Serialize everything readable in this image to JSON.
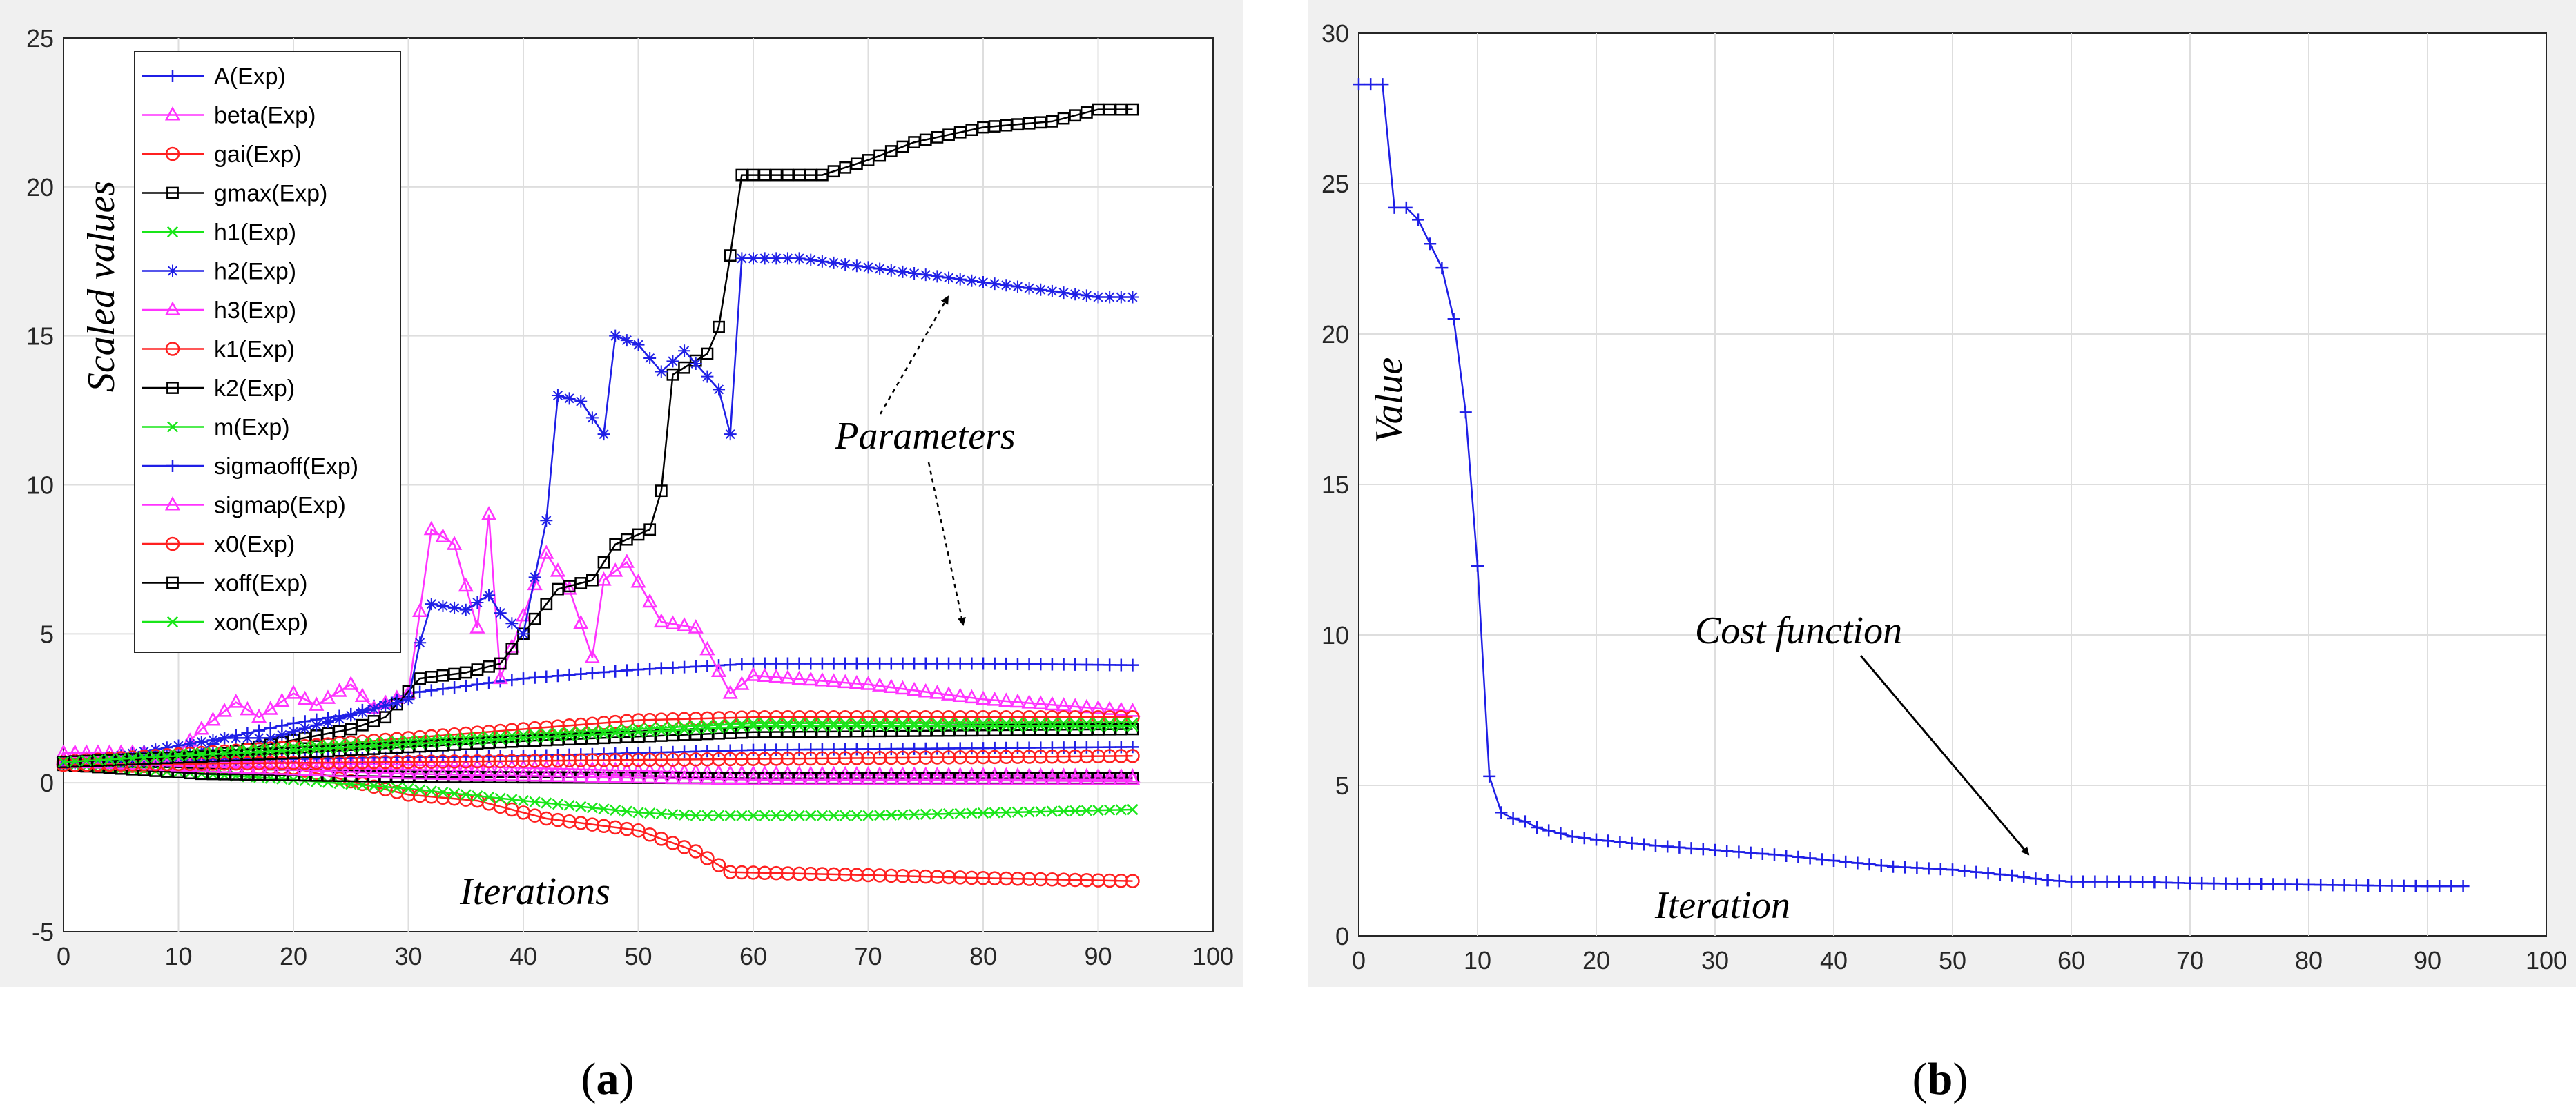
{
  "colors": {
    "A": "#1f1fe6",
    "beta": "#ff33ff",
    "gai": "#ff2020",
    "gmax": "#000000",
    "h1": "#19e619",
    "grid": "#dedede",
    "axes_bg": "#ffffff",
    "frame_bg": "#f0f0f0"
  },
  "chart_data": [
    {
      "type": "line",
      "panel": "a",
      "caption_prefix": "(",
      "caption_letter": "a",
      "caption_suffix": ")",
      "ylabel": "Scaled values",
      "xlabel": "Iterations",
      "xlim": [
        0,
        100
      ],
      "ylim": [
        -5,
        25
      ],
      "xticks": [
        "0",
        "10",
        "20",
        "30",
        "40",
        "50",
        "60",
        "70",
        "80",
        "90",
        "100"
      ],
      "yticks": [
        "-5",
        "0",
        "5",
        "10",
        "15",
        "20",
        "25"
      ],
      "grid": true,
      "legend_position": "top-left",
      "annotation": "Parameters",
      "series": [
        {
          "name": "A(Exp)",
          "color_key": "A",
          "marker": "plus",
          "points": [
            [
              0,
              0.7
            ],
            [
              10,
              0.7
            ],
            [
              14,
              1.5
            ],
            [
              20,
              2.0
            ],
            [
              25,
              2.3
            ],
            [
              30,
              3.0
            ],
            [
              40,
              3.5
            ],
            [
              50,
              3.8
            ],
            [
              60,
              4.0
            ],
            [
              70,
              4.0
            ],
            [
              80,
              4.0
            ],
            [
              93,
              3.95
            ]
          ]
        },
        {
          "name": "beta(Exp)",
          "color_key": "beta",
          "marker": "triangle",
          "points": [
            [
              0,
              1.0
            ],
            [
              10,
              1.0
            ],
            [
              12,
              1.8
            ],
            [
              15,
              2.7
            ],
            [
              17,
              2.2
            ],
            [
              20,
              3.0
            ],
            [
              22,
              2.6
            ],
            [
              25,
              3.3
            ],
            [
              27,
              2.5
            ],
            [
              30,
              3.0
            ],
            [
              32,
              8.5
            ],
            [
              34,
              8.0
            ],
            [
              36,
              5.2
            ],
            [
              37,
              9.0
            ],
            [
              38,
              3.5
            ],
            [
              42,
              7.7
            ],
            [
              44,
              6.5
            ],
            [
              46,
              4.2
            ],
            [
              47,
              6.8
            ],
            [
              49,
              7.4
            ],
            [
              52,
              5.4
            ],
            [
              55,
              5.2
            ],
            [
              58,
              3.0
            ],
            [
              60,
              3.6
            ],
            [
              70,
              3.3
            ],
            [
              80,
              2.8
            ],
            [
              93,
              2.4
            ]
          ]
        },
        {
          "name": "gai(Exp)",
          "color_key": "gai",
          "marker": "circle",
          "points": [
            [
              0,
              0.6
            ],
            [
              20,
              0.5
            ],
            [
              30,
              -0.4
            ],
            [
              36,
              -0.6
            ],
            [
              42,
              -1.2
            ],
            [
              50,
              -1.6
            ],
            [
              55,
              -2.3
            ],
            [
              58,
              -3.0
            ],
            [
              70,
              -3.1
            ],
            [
              80,
              -3.2
            ],
            [
              93,
              -3.3
            ]
          ]
        },
        {
          "name": "gmax(Exp)",
          "color_key": "gmax",
          "marker": "square",
          "points": [
            [
              0,
              0.7
            ],
            [
              10,
              0.7
            ],
            [
              25,
              1.8
            ],
            [
              28,
              2.2
            ],
            [
              31,
              3.5
            ],
            [
              35,
              3.7
            ],
            [
              38,
              4.0
            ],
            [
              40,
              5.0
            ],
            [
              43,
              6.5
            ],
            [
              46,
              6.8
            ],
            [
              48,
              8.0
            ],
            [
              51,
              8.5
            ],
            [
              52,
              9.8
            ],
            [
              53,
              13.7
            ],
            [
              56,
              14.4
            ],
            [
              57,
              15.3
            ],
            [
              58,
              17.7
            ],
            [
              59,
              20.4
            ],
            [
              66,
              20.4
            ],
            [
              70,
              20.9
            ],
            [
              74,
              21.5
            ],
            [
              80,
              22.0
            ],
            [
              86,
              22.2
            ],
            [
              90,
              22.6
            ],
            [
              93,
              22.6
            ]
          ]
        },
        {
          "name": "h1(Exp)",
          "color_key": "h1",
          "marker": "x",
          "points": [
            [
              0,
              0.6
            ],
            [
              20,
              0.1
            ],
            [
              30,
              -0.2
            ],
            [
              40,
              -0.6
            ],
            [
              50,
              -1.0
            ],
            [
              55,
              -1.1
            ],
            [
              70,
              -1.1
            ],
            [
              93,
              -0.9
            ]
          ]
        },
        {
          "name": "h2(Exp)",
          "color_key": "A",
          "marker": "star",
          "points": [
            [
              0,
              0.6
            ],
            [
              14,
              1.5
            ],
            [
              18,
              1.5
            ],
            [
              30,
              2.8
            ],
            [
              31,
              4.7
            ],
            [
              32,
              6.0
            ],
            [
              35,
              5.8
            ],
            [
              37,
              6.3
            ],
            [
              38,
              5.7
            ],
            [
              40,
              5.0
            ],
            [
              42,
              8.8
            ],
            [
              43,
              13.0
            ],
            [
              45,
              12.8
            ],
            [
              47,
              11.7
            ],
            [
              48,
              15.0
            ],
            [
              50,
              14.7
            ],
            [
              52,
              13.8
            ],
            [
              54,
              14.5
            ],
            [
              57,
              13.2
            ],
            [
              58,
              11.7
            ],
            [
              59,
              17.6
            ],
            [
              64,
              17.6
            ],
            [
              70,
              17.3
            ],
            [
              80,
              16.8
            ],
            [
              90,
              16.3
            ],
            [
              93,
              16.3
            ]
          ]
        },
        {
          "name": "h3(Exp)",
          "color_key": "beta",
          "marker": "triangle",
          "points": [
            [
              0,
              0.8
            ],
            [
              30,
              0.6
            ],
            [
              60,
              0.3
            ],
            [
              93,
              0.2
            ]
          ]
        },
        {
          "name": "k1(Exp)",
          "color_key": "gai",
          "marker": "circle",
          "points": [
            [
              0,
              0.7
            ],
            [
              20,
              1.2
            ],
            [
              40,
              1.8
            ],
            [
              50,
              2.1
            ],
            [
              60,
              2.2
            ],
            [
              93,
              2.2
            ]
          ]
        },
        {
          "name": "k2(Exp)",
          "color_key": "gmax",
          "marker": "square",
          "points": [
            [
              0,
              0.6
            ],
            [
              12,
              0.3
            ],
            [
              30,
              0.2
            ],
            [
              60,
              0.15
            ],
            [
              93,
              0.15
            ]
          ]
        },
        {
          "name": "m(Exp)",
          "color_key": "h1",
          "marker": "x",
          "points": [
            [
              0,
              0.7
            ],
            [
              20,
              1.2
            ],
            [
              40,
              1.6
            ],
            [
              50,
              1.8
            ],
            [
              60,
              2.0
            ],
            [
              93,
              2.0
            ]
          ]
        },
        {
          "name": "sigmaoff(Exp)",
          "color_key": "A",
          "marker": "plus",
          "points": [
            [
              0,
              0.7
            ],
            [
              20,
              0.8
            ],
            [
              40,
              0.9
            ],
            [
              60,
              1.1
            ],
            [
              93,
              1.2
            ]
          ]
        },
        {
          "name": "sigmap(Exp)",
          "color_key": "beta",
          "marker": "triangle",
          "points": [
            [
              0,
              0.7
            ],
            [
              30,
              0.3
            ],
            [
              60,
              0.1
            ],
            [
              93,
              0.1
            ]
          ]
        },
        {
          "name": "x0(Exp)",
          "color_key": "gai",
          "marker": "circle",
          "points": [
            [
              0,
              0.6
            ],
            [
              30,
              0.7
            ],
            [
              60,
              0.8
            ],
            [
              93,
              0.9
            ]
          ]
        },
        {
          "name": "xoff(Exp)",
          "color_key": "gmax",
          "marker": "square",
          "points": [
            [
              0,
              0.7
            ],
            [
              20,
              1.0
            ],
            [
              40,
              1.4
            ],
            [
              60,
              1.7
            ],
            [
              93,
              1.8
            ]
          ]
        },
        {
          "name": "xon(Exp)",
          "color_key": "h1",
          "marker": "x",
          "points": [
            [
              0,
              0.7
            ],
            [
              20,
              1.1
            ],
            [
              40,
              1.5
            ],
            [
              60,
              1.9
            ],
            [
              93,
              1.9
            ]
          ]
        }
      ]
    },
    {
      "type": "line",
      "panel": "b",
      "caption_prefix": "(",
      "caption_letter": "b",
      "caption_suffix": ")",
      "ylabel": "Value",
      "xlabel": "Iteration",
      "xlim": [
        0,
        100
      ],
      "ylim": [
        0,
        30
      ],
      "xticks": [
        "0",
        "10",
        "20",
        "30",
        "40",
        "50",
        "60",
        "70",
        "80",
        "90",
        "100"
      ],
      "yticks": [
        "0",
        "5",
        "10",
        "15",
        "20",
        "25",
        "30"
      ],
      "grid": true,
      "annotation": "Cost  function",
      "series": [
        {
          "name": "Cost function",
          "color_key": "A",
          "marker": "plus",
          "points": [
            [
              0,
              28.3
            ],
            [
              1,
              28.3
            ],
            [
              2,
              28.3
            ],
            [
              3,
              24.2
            ],
            [
              4,
              24.2
            ],
            [
              5,
              23.8
            ],
            [
              6,
              23.0
            ],
            [
              7,
              22.2
            ],
            [
              8,
              20.5
            ],
            [
              9,
              17.4
            ],
            [
              10,
              12.3
            ],
            [
              11,
              5.3
            ],
            [
              12,
              4.1
            ],
            [
              13,
              3.9
            ],
            [
              14,
              3.8
            ],
            [
              15,
              3.6
            ],
            [
              16,
              3.5
            ],
            [
              18,
              3.3
            ],
            [
              20,
              3.2
            ],
            [
              25,
              3.0
            ],
            [
              30,
              2.85
            ],
            [
              35,
              2.7
            ],
            [
              40,
              2.5
            ],
            [
              45,
              2.3
            ],
            [
              50,
              2.2
            ],
            [
              55,
              2.0
            ],
            [
              58,
              1.85
            ],
            [
              60,
              1.8
            ],
            [
              65,
              1.8
            ],
            [
              70,
              1.75
            ],
            [
              80,
              1.7
            ],
            [
              90,
              1.65
            ],
            [
              93,
              1.65
            ]
          ]
        }
      ]
    }
  ]
}
